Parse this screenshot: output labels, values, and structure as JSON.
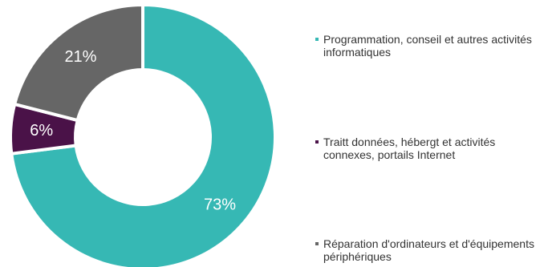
{
  "chart_data": {
    "type": "pie",
    "donut": true,
    "title": "",
    "categories": [
      "Programmation, conseil et autres activités informatiques",
      "Traitt données, hébergt et activités connexes, portails Internet",
      "Réparation d'ordinateurs et d'équipements périphériques"
    ],
    "values": [
      73,
      6,
      21
    ],
    "data_labels": [
      "73%",
      "6%",
      "21%"
    ],
    "colors": [
      "#36b8b4",
      "#4a1248",
      "#666666"
    ],
    "legend": {
      "position": "right",
      "items": [
        {
          "label": "Programmation, conseil et autres activités informatiques",
          "color": "#36b8b4"
        },
        {
          "label": "Traitt données, hébergt et activités connexes, portails Internet",
          "color": "#4a1248"
        },
        {
          "label": "Réparation d'ordinateurs et d'équipements périphériques",
          "color": "#666666"
        }
      ]
    }
  }
}
